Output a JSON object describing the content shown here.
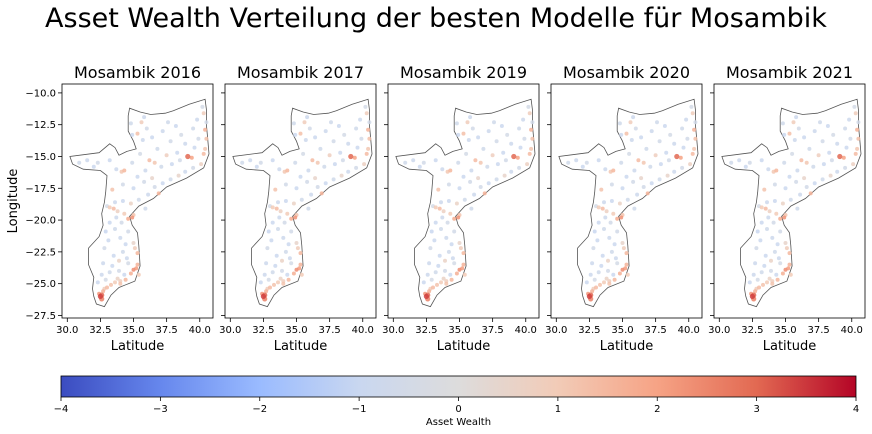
{
  "figure": {
    "suptitle": "Asset Wealth Verteilung der besten Modelle für Mosambik"
  },
  "chart_data": {
    "type": "scatter",
    "xlabel": "Latitude",
    "ylabel": "Longitude",
    "xlim": [
      29.6,
      41.0
    ],
    "ylim": [
      -27.7,
      -9.3
    ],
    "xticks": [
      30.0,
      32.5,
      35.0,
      37.5,
      40.0
    ],
    "xtick_labels": [
      "30.0",
      "32.5",
      "35.0",
      "37.5",
      "40.0"
    ],
    "yticks": [
      -10.0,
      -12.5,
      -15.0,
      -17.5,
      -20.0,
      -22.5,
      -25.0,
      -27.5
    ],
    "ytick_labels": [
      "−10.0",
      "−12.5",
      "−15.0",
      "−17.5",
      "−20.0",
      "−22.5",
      "−25.0",
      "−27.5"
    ],
    "panels": [
      {
        "title": "Mosambik 2016"
      },
      {
        "title": "Mosambik 2017"
      },
      {
        "title": "Mosambik 2019"
      },
      {
        "title": "Mosambik 2020"
      },
      {
        "title": "Mosambik 2021"
      }
    ],
    "border": [
      [
        30.2,
        -15.0
      ],
      [
        30.4,
        -15.6
      ],
      [
        31.2,
        -16.0
      ],
      [
        32.5,
        -16.1
      ],
      [
        33.0,
        -16.5
      ],
      [
        32.9,
        -17.8
      ],
      [
        32.8,
        -18.6
      ],
      [
        32.6,
        -19.5
      ],
      [
        32.7,
        -20.4
      ],
      [
        32.4,
        -21.3
      ],
      [
        31.6,
        -22.2
      ],
      [
        31.6,
        -23.5
      ],
      [
        32.0,
        -24.5
      ],
      [
        31.9,
        -25.4
      ],
      [
        32.0,
        -26.0
      ],
      [
        32.2,
        -26.6
      ],
      [
        32.8,
        -26.8
      ],
      [
        33.3,
        -25.9
      ],
      [
        33.9,
        -25.3
      ],
      [
        35.1,
        -24.8
      ],
      [
        35.5,
        -23.6
      ],
      [
        35.4,
        -22.0
      ],
      [
        35.3,
        -21.0
      ],
      [
        34.9,
        -20.4
      ],
      [
        34.7,
        -19.7
      ],
      [
        35.4,
        -18.9
      ],
      [
        36.5,
        -18.3
      ],
      [
        37.5,
        -17.4
      ],
      [
        39.0,
        -16.7
      ],
      [
        40.3,
        -15.9
      ],
      [
        40.7,
        -14.8
      ],
      [
        40.6,
        -13.6
      ],
      [
        40.5,
        -12.5
      ],
      [
        40.5,
        -11.3
      ],
      [
        40.4,
        -10.5
      ],
      [
        39.2,
        -10.9
      ],
      [
        38.0,
        -11.4
      ],
      [
        37.4,
        -11.6
      ],
      [
        36.3,
        -11.7
      ],
      [
        35.5,
        -11.5
      ],
      [
        34.7,
        -11.2
      ],
      [
        34.6,
        -11.8
      ],
      [
        34.6,
        -13.0
      ],
      [
        35.0,
        -13.8
      ],
      [
        35.2,
        -14.4
      ],
      [
        34.5,
        -14.6
      ],
      [
        33.9,
        -14.9
      ],
      [
        33.6,
        -14.3
      ],
      [
        33.2,
        -14.0
      ],
      [
        32.4,
        -14.7
      ],
      [
        30.2,
        -15.0
      ]
    ],
    "points": [
      {
        "x": 32.5,
        "y": -26.0,
        "v": 3.4
      },
      {
        "x": 32.6,
        "y": -25.9,
        "v": 3.0
      },
      {
        "x": 32.4,
        "y": -25.8,
        "v": 2.2
      },
      {
        "x": 32.7,
        "y": -25.6,
        "v": 1.6
      },
      {
        "x": 32.6,
        "y": -26.2,
        "v": 2.6
      },
      {
        "x": 33.0,
        "y": -25.3,
        "v": 1.4
      },
      {
        "x": 33.3,
        "y": -25.1,
        "v": 1.2
      },
      {
        "x": 33.6,
        "y": -24.9,
        "v": 1.0
      },
      {
        "x": 34.0,
        "y": -24.8,
        "v": 0.8
      },
      {
        "x": 34.4,
        "y": -24.7,
        "v": 1.5
      },
      {
        "x": 34.8,
        "y": -24.2,
        "v": 1.7
      },
      {
        "x": 35.0,
        "y": -23.9,
        "v": 2.4
      },
      {
        "x": 35.2,
        "y": -23.8,
        "v": 2.1
      },
      {
        "x": 35.3,
        "y": -23.5,
        "v": 1.6
      },
      {
        "x": 35.3,
        "y": -22.6,
        "v": 1.5
      },
      {
        "x": 35.0,
        "y": -21.8,
        "v": 0.5
      },
      {
        "x": 34.6,
        "y": -20.9,
        "v": -0.6
      },
      {
        "x": 34.9,
        "y": -19.8,
        "v": 2.3
      },
      {
        "x": 34.6,
        "y": -19.9,
        "v": 1.8
      },
      {
        "x": 35.0,
        "y": -19.6,
        "v": 1.2
      },
      {
        "x": 33.5,
        "y": -19.1,
        "v": 1.4
      },
      {
        "x": 33.2,
        "y": -19.0,
        "v": 1.0
      },
      {
        "x": 33.8,
        "y": -19.3,
        "v": 0.7
      },
      {
        "x": 34.3,
        "y": -19.5,
        "v": 1.0
      },
      {
        "x": 33.0,
        "y": -18.9,
        "v": -0.5
      },
      {
        "x": 33.7,
        "y": -19.8,
        "v": -0.8
      },
      {
        "x": 33.2,
        "y": -20.2,
        "v": -0.9
      },
      {
        "x": 33.6,
        "y": -20.7,
        "v": -0.7
      },
      {
        "x": 34.0,
        "y": -21.4,
        "v": -0.8
      },
      {
        "x": 33.1,
        "y": -21.6,
        "v": -0.9
      },
      {
        "x": 32.8,
        "y": -22.2,
        "v": -0.6
      },
      {
        "x": 33.5,
        "y": -22.8,
        "v": -0.9
      },
      {
        "x": 34.2,
        "y": -22.5,
        "v": -0.7
      },
      {
        "x": 32.7,
        "y": -23.4,
        "v": -0.8
      },
      {
        "x": 33.4,
        "y": -23.6,
        "v": -0.9
      },
      {
        "x": 34.6,
        "y": -23.4,
        "v": -0.5
      },
      {
        "x": 32.6,
        "y": -24.3,
        "v": -0.8
      },
      {
        "x": 33.2,
        "y": -24.1,
        "v": -0.7
      },
      {
        "x": 33.9,
        "y": -24.0,
        "v": -0.6
      },
      {
        "x": 34.3,
        "y": -24.3,
        "v": -0.9
      },
      {
        "x": 32.9,
        "y": -24.7,
        "v": -0.5
      },
      {
        "x": 33.8,
        "y": -24.6,
        "v": 0.6
      },
      {
        "x": 32.3,
        "y": -24.9,
        "v": -0.9
      },
      {
        "x": 32.8,
        "y": -25.4,
        "v": 0.9
      },
      {
        "x": 34.1,
        "y": -20.2,
        "v": -0.6
      },
      {
        "x": 34.4,
        "y": -21.9,
        "v": -0.9
      },
      {
        "x": 35.1,
        "y": -22.2,
        "v": 0.9
      },
      {
        "x": 32.9,
        "y": -20.9,
        "v": -1.0
      },
      {
        "x": 33.6,
        "y": -18.6,
        "v": -0.8
      },
      {
        "x": 34.2,
        "y": -18.5,
        "v": -0.9
      },
      {
        "x": 34.8,
        "y": -18.7,
        "v": 0.6
      },
      {
        "x": 35.4,
        "y": -18.4,
        "v": -0.7
      },
      {
        "x": 36.1,
        "y": -18.0,
        "v": -0.8
      },
      {
        "x": 36.9,
        "y": -17.9,
        "v": 1.6
      },
      {
        "x": 36.6,
        "y": -17.4,
        "v": -0.6
      },
      {
        "x": 37.2,
        "y": -17.1,
        "v": -0.9
      },
      {
        "x": 37.8,
        "y": -16.8,
        "v": -0.7
      },
      {
        "x": 38.4,
        "y": -16.5,
        "v": 0.5
      },
      {
        "x": 38.9,
        "y": -16.2,
        "v": -0.8
      },
      {
        "x": 39.5,
        "y": -15.9,
        "v": -0.6
      },
      {
        "x": 40.1,
        "y": -15.6,
        "v": 0.7
      },
      {
        "x": 39.1,
        "y": -15.0,
        "v": 3.0
      },
      {
        "x": 39.4,
        "y": -15.1,
        "v": 2.0
      },
      {
        "x": 40.3,
        "y": -14.8,
        "v": 1.4
      },
      {
        "x": 40.4,
        "y": -14.4,
        "v": 1.1
      },
      {
        "x": 40.5,
        "y": -13.6,
        "v": 1.3
      },
      {
        "x": 40.4,
        "y": -12.9,
        "v": 1.6
      },
      {
        "x": 40.5,
        "y": -12.3,
        "v": -0.6
      },
      {
        "x": 40.3,
        "y": -11.6,
        "v": 0.9
      },
      {
        "x": 40.2,
        "y": -11.1,
        "v": -0.5
      },
      {
        "x": 39.8,
        "y": -12.1,
        "v": -0.8
      },
      {
        "x": 39.5,
        "y": -12.8,
        "v": -0.7
      },
      {
        "x": 39.9,
        "y": -13.6,
        "v": -0.6
      },
      {
        "x": 39.6,
        "y": -14.3,
        "v": -0.9
      },
      {
        "x": 38.9,
        "y": -14.0,
        "v": -0.8
      },
      {
        "x": 38.6,
        "y": -13.3,
        "v": -0.5
      },
      {
        "x": 38.2,
        "y": -12.6,
        "v": -0.9
      },
      {
        "x": 37.6,
        "y": -12.3,
        "v": -0.7
      },
      {
        "x": 37.2,
        "y": -13.0,
        "v": -0.8
      },
      {
        "x": 37.8,
        "y": -13.8,
        "v": -0.6
      },
      {
        "x": 38.3,
        "y": -14.7,
        "v": -0.9
      },
      {
        "x": 37.5,
        "y": -14.9,
        "v": 0.8
      },
      {
        "x": 36.8,
        "y": -14.4,
        "v": -0.7
      },
      {
        "x": 36.4,
        "y": -13.5,
        "v": -0.9
      },
      {
        "x": 36.0,
        "y": -12.8,
        "v": -0.6
      },
      {
        "x": 35.6,
        "y": -12.3,
        "v": 0.9
      },
      {
        "x": 35.3,
        "y": -13.2,
        "v": 1.3
      },
      {
        "x": 35.7,
        "y": -13.7,
        "v": -0.8
      },
      {
        "x": 35.5,
        "y": -14.8,
        "v": -0.5
      },
      {
        "x": 36.2,
        "y": -15.3,
        "v": 1.4
      },
      {
        "x": 36.6,
        "y": -15.5,
        "v": 1.1
      },
      {
        "x": 37.1,
        "y": -15.8,
        "v": -0.7
      },
      {
        "x": 37.9,
        "y": -15.6,
        "v": -0.9
      },
      {
        "x": 38.5,
        "y": -15.3,
        "v": -0.6
      },
      {
        "x": 35.9,
        "y": -16.1,
        "v": -0.8
      },
      {
        "x": 35.3,
        "y": -16.6,
        "v": -0.9
      },
      {
        "x": 35.8,
        "y": -17.0,
        "v": -0.6
      },
      {
        "x": 36.4,
        "y": -16.7,
        "v": 0.5
      },
      {
        "x": 34.9,
        "y": -15.5,
        "v": -0.7
      },
      {
        "x": 34.3,
        "y": -16.1,
        "v": 1.5
      },
      {
        "x": 34.1,
        "y": -16.2,
        "v": 1.1
      },
      {
        "x": 33.7,
        "y": -16.0,
        "v": -0.8
      },
      {
        "x": 33.2,
        "y": -15.3,
        "v": -0.9
      },
      {
        "x": 32.3,
        "y": -15.5,
        "v": -0.6
      },
      {
        "x": 31.5,
        "y": -15.3,
        "v": -0.8
      },
      {
        "x": 30.9,
        "y": -15.5,
        "v": -0.7
      },
      {
        "x": 32.0,
        "y": -15.8,
        "v": -0.9
      },
      {
        "x": 35.8,
        "y": -11.9,
        "v": -0.8
      },
      {
        "x": 34.8,
        "y": -12.4,
        "v": -0.7
      },
      {
        "x": 34.9,
        "y": -13.3,
        "v": -0.9
      },
      {
        "x": 34.2,
        "y": -17.2,
        "v": -0.6
      },
      {
        "x": 35.0,
        "y": -17.5,
        "v": -0.9
      },
      {
        "x": 35.9,
        "y": -19.1,
        "v": -0.7
      },
      {
        "x": 33.4,
        "y": -17.6,
        "v": 1.2
      },
      {
        "x": 34.5,
        "y": -23.0,
        "v": -0.8
      },
      {
        "x": 33.9,
        "y": -23.2,
        "v": 0.6
      },
      {
        "x": 35.4,
        "y": -24.3,
        "v": 1.0
      },
      {
        "x": 34.0,
        "y": -25.0,
        "v": 1.2
      }
    ]
  },
  "colorbar": {
    "label": "Asset Wealth",
    "range": [
      -4,
      4
    ],
    "tick_labels": [
      "−4",
      "−3",
      "−2",
      "−1",
      "0",
      "1",
      "2",
      "3",
      "4"
    ],
    "colormap": "coolwarm",
    "stops": [
      "#3b4cc0",
      "#6687ed",
      "#9abbff",
      "#c9d7f0",
      "#dddcdc",
      "#f2cbb7",
      "#f6a385",
      "#e26952",
      "#b40426"
    ]
  }
}
